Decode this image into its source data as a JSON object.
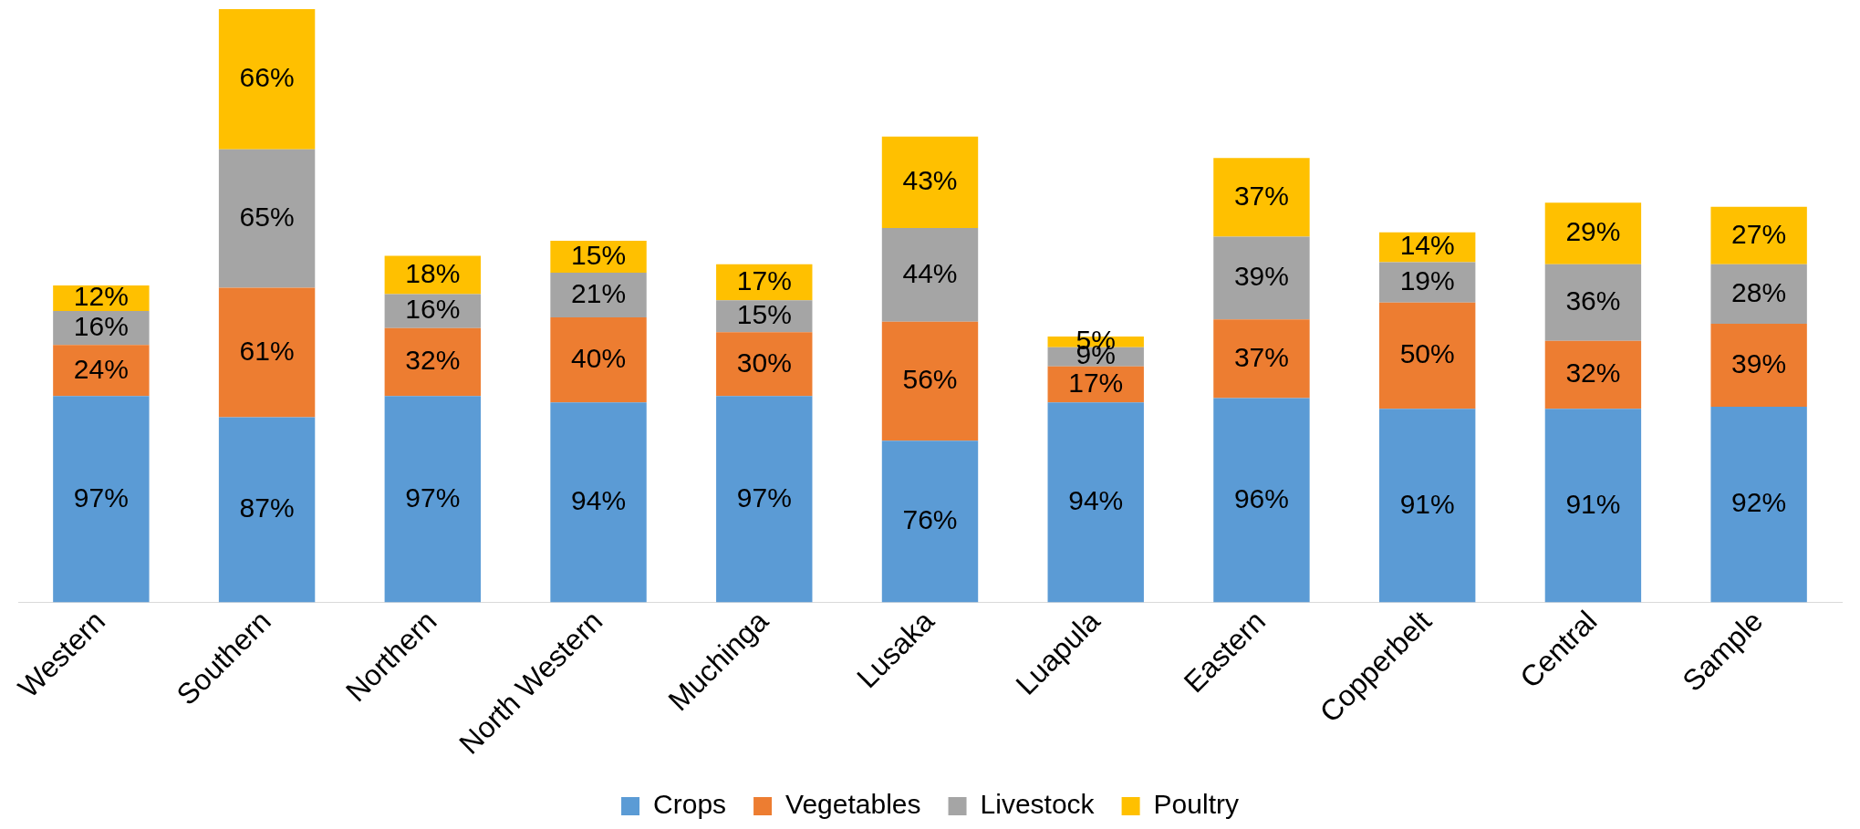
{
  "chart_data": {
    "type": "bar",
    "stacked": true,
    "legend": "bottom",
    "grid": false,
    "tick_labels": "x",
    "categories": [
      "Western",
      "Southern",
      "Northern",
      "North Western",
      "Muchinga",
      "Lusaka",
      "Luapula",
      "Eastern",
      "Copperbelt",
      "Central",
      "Sample"
    ],
    "series": [
      {
        "name": "Crops",
        "color": "#5b9bd5",
        "values": [
          97,
          87,
          97,
          94,
          97,
          76,
          94,
          96,
          91,
          91,
          92
        ],
        "value_labels": [
          "97%",
          "87%",
          "97%",
          "94%",
          "97%",
          "76%",
          "94%",
          "96%",
          "91%",
          "91%",
          "92%"
        ]
      },
      {
        "name": "Vegetables",
        "color": "#ed7d31",
        "values": [
          24,
          61,
          32,
          40,
          30,
          56,
          17,
          37,
          50,
          32,
          39
        ],
        "value_labels": [
          "24%",
          "61%",
          "32%",
          "40%",
          "30%",
          "56%",
          "17%",
          "37%",
          "50%",
          "32%",
          "39%"
        ]
      },
      {
        "name": "Livestock",
        "color": "#a5a5a5",
        "values": [
          16,
          65,
          16,
          21,
          15,
          44,
          9,
          39,
          19,
          36,
          28
        ],
        "value_labels": [
          "16%",
          "65%",
          "16%",
          "21%",
          "15%",
          "44%",
          "9%",
          "39%",
          "19%",
          "36%",
          "28%"
        ]
      },
      {
        "name": "Poultry",
        "color": "#ffc000",
        "values": [
          12,
          66,
          18,
          15,
          17,
          43,
          5,
          37,
          14,
          29,
          27
        ],
        "value_labels": [
          "12%",
          "66%",
          "18%",
          "15%",
          "17%",
          "43%",
          "5%",
          "37%",
          "14%",
          "29%",
          "27%"
        ]
      }
    ]
  }
}
